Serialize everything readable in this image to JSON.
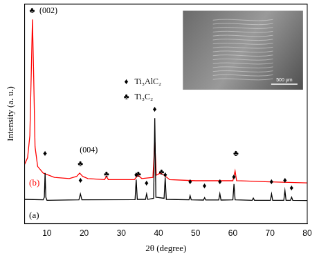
{
  "chart_data": {
    "type": "line",
    "x_label": "2θ (degree)",
    "y_label": "Intensity (a. u.)",
    "xlim": [
      4,
      80
    ],
    "xticks": [
      10,
      20,
      30,
      40,
      50,
      60,
      70,
      80
    ],
    "ylim": [
      0,
      100
    ],
    "tick_labels": "x",
    "grid": false,
    "series": [
      {
        "name": "(a)",
        "color": "#000000",
        "label_at": [
          5.2,
          3.6
        ],
        "x": [
          4,
          9.0,
          9.3,
          9.5,
          9.7,
          10,
          18.6,
          19,
          19.4,
          33.7,
          34,
          34.3,
          36.5,
          36.8,
          37.1,
          38.7,
          39,
          39.3,
          41.5,
          41.8,
          42.1,
          48.2,
          48.5,
          48.8,
          52.1,
          52.4,
          52.7,
          56.2,
          56.5,
          56.8,
          60,
          60.3,
          60.6,
          65.2,
          65.5,
          65.8,
          70.1,
          70.4,
          70.7,
          73.7,
          74,
          74.3,
          75.5,
          75.8,
          76.1,
          80
        ],
        "values": [
          11,
          10.8,
          12,
          23,
          12,
          10.6,
          10.8,
          13.5,
          10.8,
          10.9,
          20,
          11,
          11,
          13.5,
          11,
          11.5,
          48,
          12,
          11.5,
          21,
          11,
          10.8,
          12.7,
          10.8,
          10.7,
          11.8,
          10.7,
          10.7,
          13.6,
          10.7,
          10.8,
          18,
          10.8,
          10.6,
          11.6,
          10.6,
          10.6,
          13.5,
          10.6,
          10.6,
          15,
          10.6,
          10.6,
          12,
          10.6,
          10.5
        ]
      },
      {
        "name": "(b)",
        "color": "#ff0000",
        "label_at": [
          5.2,
          18.5
        ],
        "x": [
          4,
          4.8,
          5.4,
          5.8,
          6.1,
          6.4,
          6.8,
          7.5,
          9,
          12,
          16,
          18,
          18.8,
          19.6,
          21,
          25.5,
          26,
          26.5,
          33.5,
          34.5,
          35.5,
          38.5,
          39,
          39.4,
          40.5,
          41.5,
          43,
          50,
          60,
          60.6,
          61,
          70,
          80
        ],
        "values": [
          27,
          30,
          40,
          70,
          93,
          70,
          35,
          26,
          23,
          21,
          20.5,
          21.5,
          23,
          21.5,
          20.5,
          20,
          21.5,
          20,
          20,
          22,
          20.5,
          21,
          37,
          22,
          23,
          22,
          20,
          19.5,
          19.5,
          24,
          19.5,
          19,
          18.5
        ]
      }
    ],
    "phase_markers": [
      {
        "symbol": "♦",
        "name": "Ti₃AlC₂",
        "points": [
          [
            9.5,
            31.8
          ],
          [
            19,
            19.7
          ],
          [
            34,
            22.1
          ],
          [
            36.8,
            18.2
          ],
          [
            39,
            52
          ],
          [
            41.8,
            22.1
          ],
          [
            48.5,
            19.1
          ],
          [
            52.4,
            17
          ],
          [
            56.5,
            19.1
          ],
          [
            60.3,
            21.2
          ],
          [
            70.4,
            19.1
          ],
          [
            74,
            19.7
          ],
          [
            75.8,
            16
          ]
        ]
      },
      {
        "symbol": "♣",
        "name": "Ti₃C₂",
        "points": [
          [
            6.0,
            97
          ],
          [
            19,
            27
          ],
          [
            26,
            22.5
          ],
          [
            34.6,
            22.5
          ],
          [
            40.8,
            23.3
          ],
          [
            60.8,
            31.8
          ]
        ]
      }
    ],
    "annotations": [
      {
        "text": "(002)",
        "x": 8.0,
        "y": 97
      },
      {
        "text": "(004)",
        "x": 18.8,
        "y": 33.5
      }
    ],
    "inset_image": {
      "scale_label": "500 μm"
    }
  }
}
